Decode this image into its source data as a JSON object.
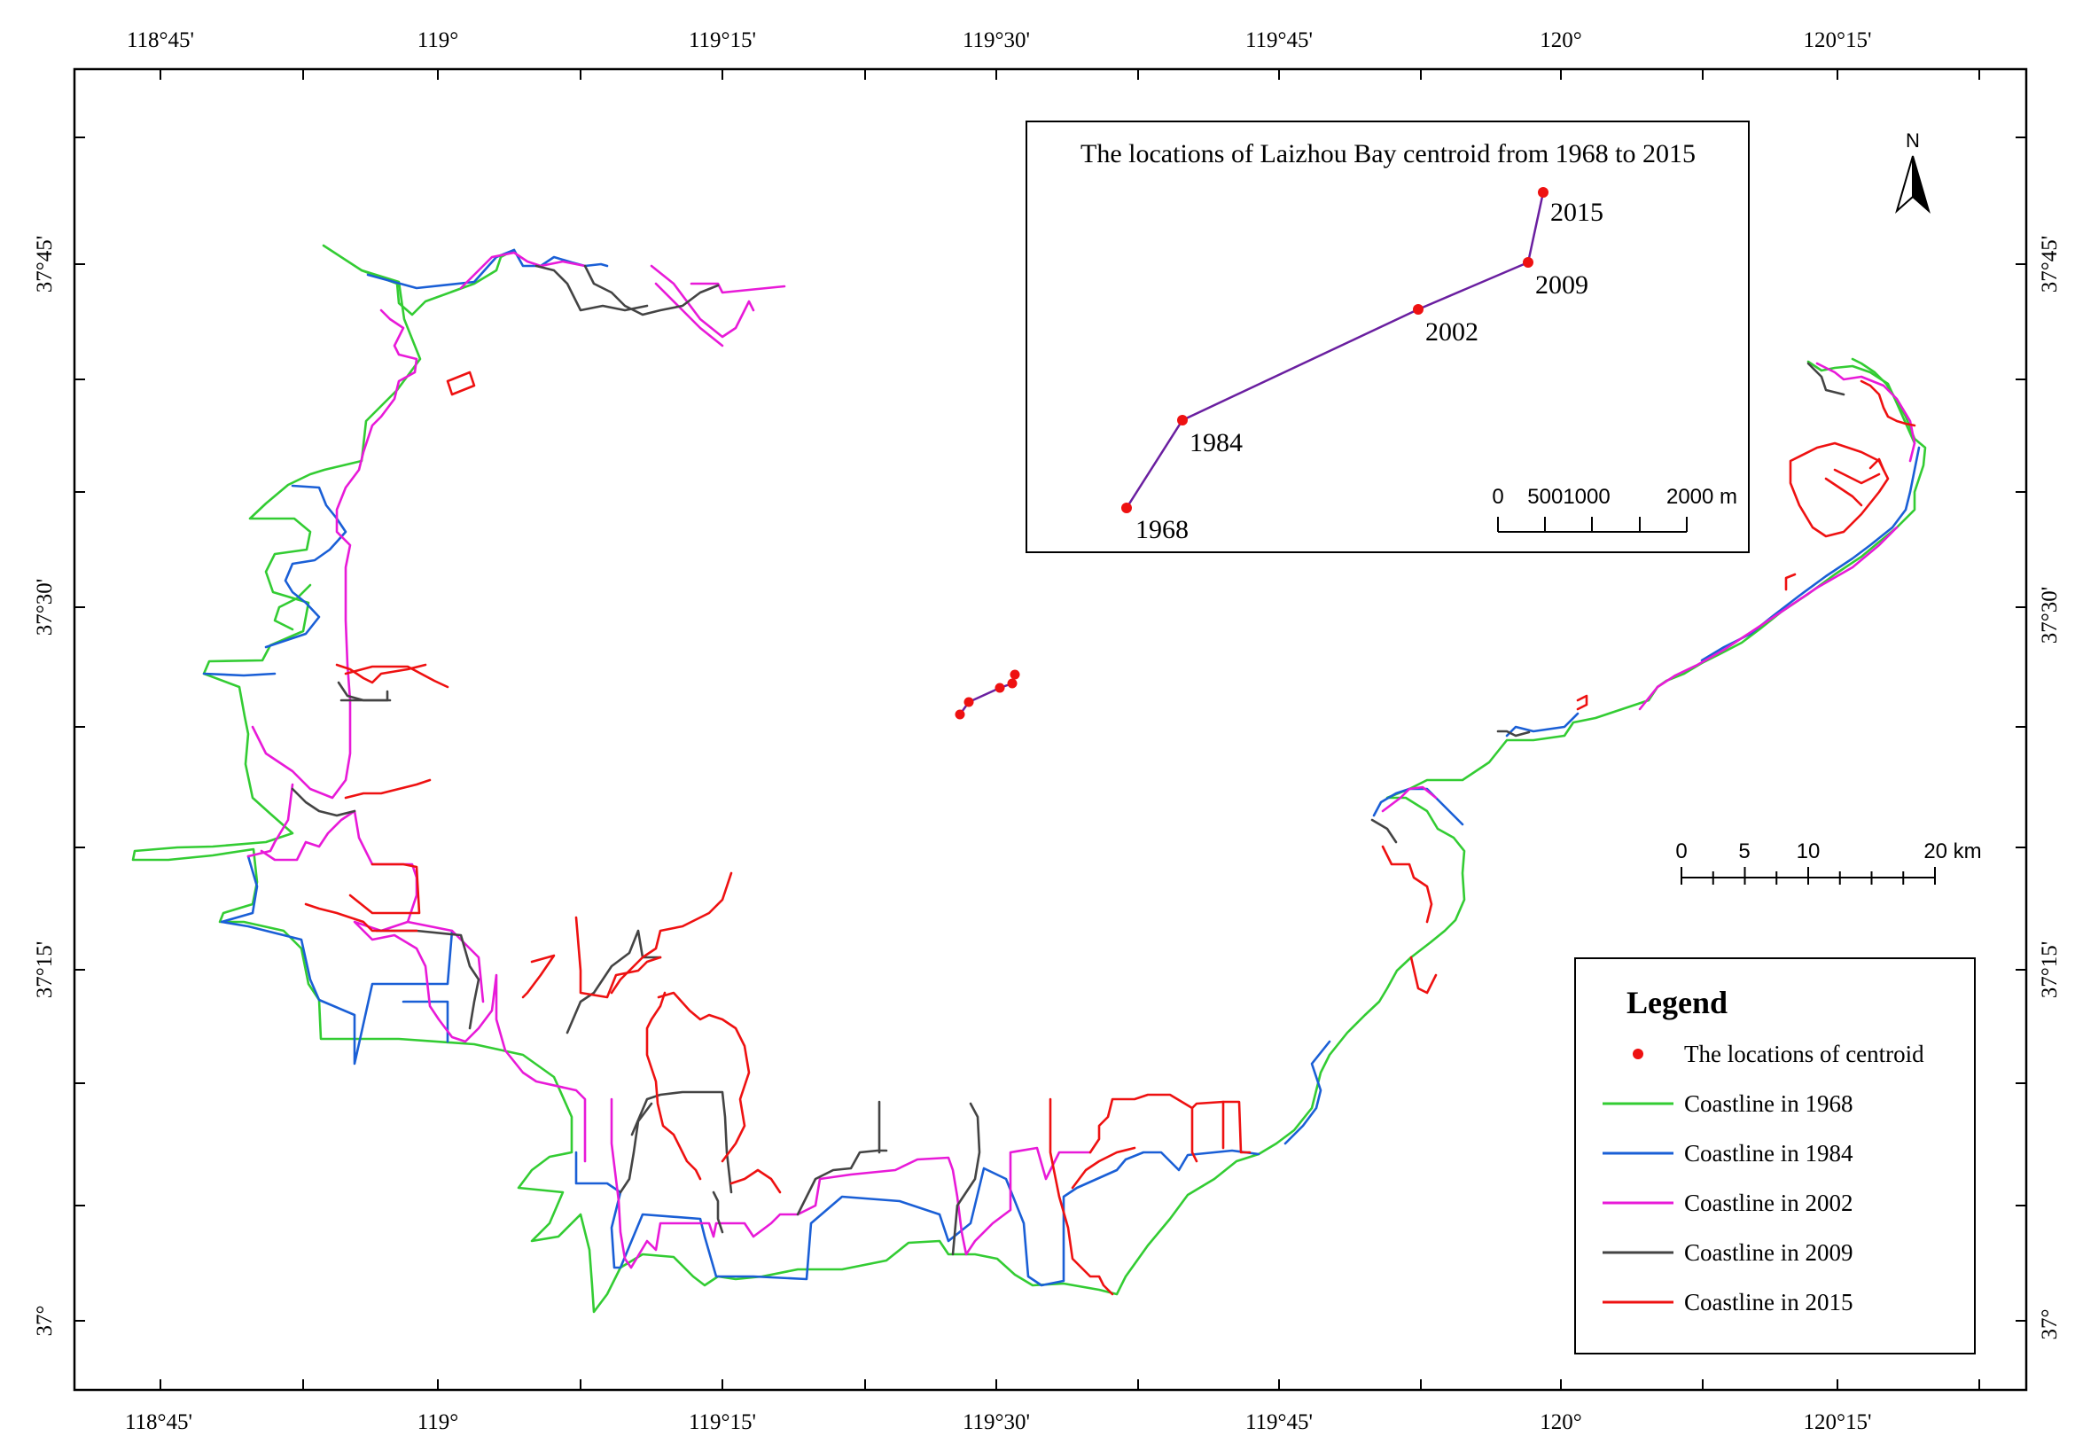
{
  "colors": {
    "coast_1968": "#33cc33",
    "coast_1984": "#1a5fd6",
    "coast_2002": "#e81ad8",
    "coast_2009": "#444444",
    "coast_2015": "#ee1111",
    "centroid": "#ee1111",
    "centroid_path": "#6a1fa0"
  },
  "axes": {
    "top_labels": [
      "118°45'",
      "119°",
      "119°15'",
      "119°30'",
      "119°45'",
      "120°",
      "120°15'"
    ],
    "bottom_labels": [
      "118°45'",
      "119°",
      "119°15'",
      "119°30'",
      "119°45'",
      "120°",
      "120°15'"
    ],
    "left_labels": [
      "37°45'",
      "37°30'",
      "37°15'",
      "37°"
    ],
    "right_labels": [
      "37°45'",
      "37°30'",
      "37°15'",
      "37°"
    ]
  },
  "inset": {
    "title": "The locations of Laizhou Bay centroid from 1968 to 2015",
    "points": [
      {
        "year": "1968"
      },
      {
        "year": "1984"
      },
      {
        "year": "2002"
      },
      {
        "year": "2009"
      },
      {
        "year": "2015"
      }
    ],
    "scale_labels": [
      "0",
      "5001000",
      "2000 m"
    ]
  },
  "scalebar": {
    "labels": [
      "0",
      "5",
      "10",
      "20 km"
    ]
  },
  "north_arrow": {
    "label": "N",
    "icon": "north-arrow-icon"
  },
  "legend": {
    "title": "Legend",
    "items": [
      {
        "label": "The locations of centroid",
        "symbol": "dot",
        "color_key": "centroid"
      },
      {
        "label": "Coastline in 1968",
        "symbol": "line",
        "color_key": "coast_1968"
      },
      {
        "label": "Coastline in 1984",
        "symbol": "line",
        "color_key": "coast_1984"
      },
      {
        "label": "Coastline in 2002",
        "symbol": "line",
        "color_key": "coast_2002"
      },
      {
        "label": "Coastline in 2009",
        "symbol": "line",
        "color_key": "coast_2009"
      },
      {
        "label": "Coastline in 2015",
        "symbol": "line",
        "color_key": "coast_2015"
      }
    ]
  }
}
